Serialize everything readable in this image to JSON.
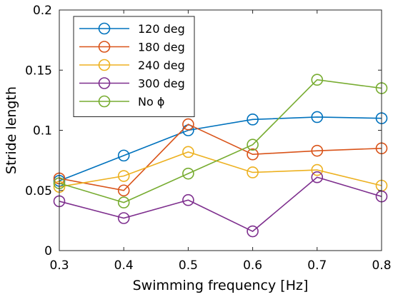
{
  "chart_data": {
    "type": "line",
    "title": "",
    "xlabel": "Swimming frequency [Hz]",
    "ylabel": "Stride length",
    "x": [
      0.3,
      0.4,
      0.5,
      0.6,
      0.7,
      0.8
    ],
    "xlim": [
      0.3,
      0.8
    ],
    "ylim": [
      0,
      0.2
    ],
    "x_ticks": [
      "0.3",
      "0.4",
      "0.5",
      "0.6",
      "0.7",
      "0.8"
    ],
    "y_ticks": [
      "0",
      "0.05",
      "0.1",
      "0.15",
      "0.2"
    ],
    "grid": false,
    "legend_position": "top-left",
    "marker": "circle (hollow)",
    "series": [
      {
        "name": "120 deg",
        "color": "#0072BD",
        "values": [
          0.058,
          0.079,
          0.1,
          0.109,
          0.111,
          0.11
        ]
      },
      {
        "name": "180 deg",
        "color": "#D95319",
        "values": [
          0.06,
          0.05,
          0.105,
          0.08,
          0.083,
          0.085
        ]
      },
      {
        "name": "240 deg",
        "color": "#EDB120",
        "values": [
          0.053,
          0.062,
          0.082,
          0.065,
          0.067,
          0.054
        ]
      },
      {
        "name": "300 deg",
        "color": "#7E2F8E",
        "values": [
          0.041,
          0.027,
          0.042,
          0.016,
          0.061,
          0.045
        ]
      },
      {
        "name": "No ϕ",
        "color": "#77AC30",
        "values": [
          0.056,
          0.04,
          0.064,
          0.088,
          0.142,
          0.135
        ]
      }
    ]
  }
}
